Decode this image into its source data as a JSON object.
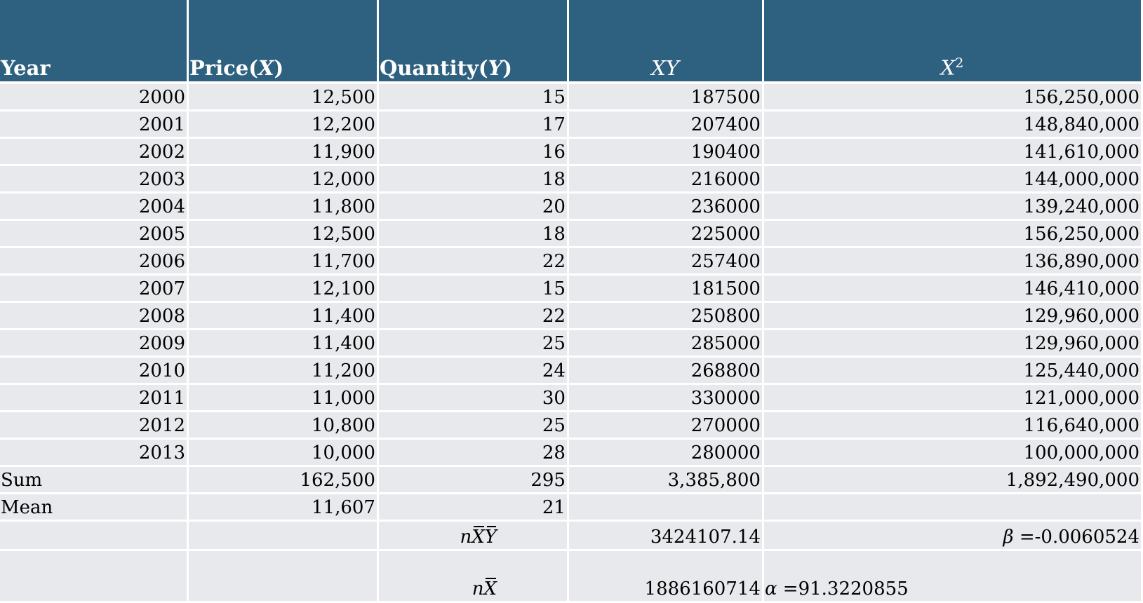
{
  "table": {
    "headers": {
      "year": "Year",
      "price_text": "Price",
      "price_var": "X",
      "qty_text": "Quantity",
      "qty_var": "Y",
      "xy": "XY",
      "x2_base": "X",
      "x2_exp": "2"
    },
    "rows": [
      {
        "year": "2000",
        "price": "12,500",
        "qty": "15",
        "xy": "187500",
        "x2": "156,250,000"
      },
      {
        "year": "2001",
        "price": "12,200",
        "qty": "17",
        "xy": "207400",
        "x2": "148,840,000"
      },
      {
        "year": "2002",
        "price": "11,900",
        "qty": "16",
        "xy": "190400",
        "x2": "141,610,000"
      },
      {
        "year": "2003",
        "price": "12,000",
        "qty": "18",
        "xy": "216000",
        "x2": "144,000,000"
      },
      {
        "year": "2004",
        "price": "11,800",
        "qty": "20",
        "xy": "236000",
        "x2": "139,240,000"
      },
      {
        "year": "2005",
        "price": "12,500",
        "qty": "18",
        "xy": "225000",
        "x2": "156,250,000"
      },
      {
        "year": "2006",
        "price": "11,700",
        "qty": "22",
        "xy": "257400",
        "x2": "136,890,000"
      },
      {
        "year": "2007",
        "price": "12,100",
        "qty": "15",
        "xy": "181500",
        "x2": "146,410,000"
      },
      {
        "year": "2008",
        "price": "11,400",
        "qty": "22",
        "xy": "250800",
        "x2": "129,960,000"
      },
      {
        "year": "2009",
        "price": "11,400",
        "qty": "25",
        "xy": "285000",
        "x2": "129,960,000"
      },
      {
        "year": "2010",
        "price": "11,200",
        "qty": "24",
        "xy": "268800",
        "x2": "125,440,000"
      },
      {
        "year": "2011",
        "price": "11,000",
        "qty": "30",
        "xy": "330000",
        "x2": "121,000,000"
      },
      {
        "year": "2012",
        "price": "10,800",
        "qty": "25",
        "xy": "270000",
        "x2": "116,640,000"
      },
      {
        "year": "2013",
        "price": "10,000",
        "qty": "28",
        "xy": "280000",
        "x2": "100,000,000"
      }
    ],
    "sum": {
      "label": "Sum",
      "price": "162,500",
      "qty": "295",
      "xy": "3,385,800",
      "x2": "1,892,490,000"
    },
    "mean": {
      "label": "Mean",
      "price": "11,607",
      "qty": "21"
    },
    "nxy": {
      "n": "n",
      "xbar": "X",
      "ybar": "Y",
      "value": "3424107.14",
      "beta_symbol": "β",
      "beta_value": "=-0.0060524"
    },
    "nx": {
      "n": "n",
      "xbar": "X",
      "value": "1886160714",
      "alpha_symbol": "α",
      "alpha_value": "=91.3220855"
    }
  }
}
